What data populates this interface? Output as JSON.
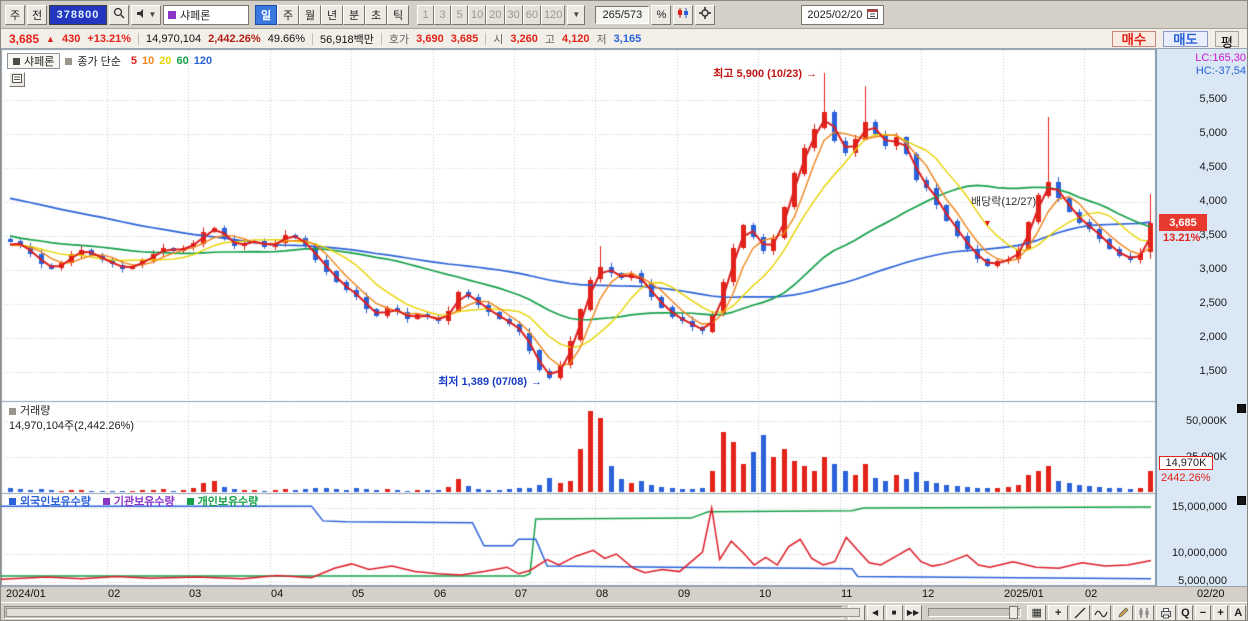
{
  "colors": {
    "up_candle": "#e2231a",
    "down_candle": "#2b62d9",
    "badge_bg": "#e8392e",
    "gutter_bg": "#dae7f5",
    "lc_color": "#d018d0",
    "hc_color": "#2b62d9"
  },
  "icons": {
    "up_arrow": "▲",
    "dropdown": "▼",
    "nav_buttons": [
      "▶",
      "◀",
      "■",
      "▶▶"
    ],
    "grid": "▦",
    "crosshair": "+"
  },
  "toolbar": {
    "btn_week": "주",
    "btn_prev": "전",
    "stock_code": "378800",
    "stock_name": "샤페론",
    "period_tabs": [
      "일",
      "주",
      "월",
      "년",
      "분",
      "초",
      "틱"
    ],
    "active_period": "일",
    "interval_buttons": [
      "1",
      "3",
      "5",
      "10",
      "20",
      "30",
      "60",
      "120"
    ],
    "counter": "265/573",
    "percent_icon_label": "%",
    "date": "2025/02/20"
  },
  "quote_bar": {
    "price": "3,685",
    "up_arrow": "▲",
    "change": "430",
    "change_pct": "+13.21%",
    "volume": "14,970,104",
    "volume_ratio": "2,442.26%",
    "turnover": "49.66%",
    "amount": "56,918백만",
    "hoga_label": "호가",
    "ask": "3,690",
    "bid": "3,685",
    "open_label": "시",
    "open": "3,260",
    "high_label": "고",
    "high": "4,120",
    "low_label": "저",
    "low": "3,165",
    "buy": "매수",
    "sell": "매도",
    "avg": "평"
  },
  "chart": {
    "title": "샤페론",
    "legend_label": "종가 단순",
    "ma_items": [
      {
        "label": "5",
        "color": "#dc1e1e"
      },
      {
        "label": "10",
        "color": "#f08418"
      },
      {
        "label": "20",
        "color": "#e8d400"
      },
      {
        "label": "60",
        "color": "#16a04a"
      },
      {
        "label": "120",
        "color": "#2b62d9"
      }
    ],
    "lc": "LC:165,30",
    "hc": "HC:-37,54",
    "price_ticks": [
      "5,500",
      "5,000",
      "4,500",
      "4,000",
      "3,500",
      "3,000",
      "2,500",
      "2,000",
      "1,500"
    ],
    "badge_price": "3,685",
    "badge_pct": "13.21%",
    "annotations": {
      "high": {
        "text": "최고 5,900 (10/23)",
        "arrow": "→"
      },
      "low": {
        "text": "최저 1,389 (07/08)",
        "arrow": "→"
      },
      "exdiv": {
        "text": "배당락(12/27)",
        "marker": "▼"
      }
    }
  },
  "volume_panel": {
    "label": "거래량",
    "detail": "14,970,104주(2,442.26%)",
    "ticks": [
      "50,000K",
      "25,000K"
    ],
    "badge": "14,970K",
    "badge_pct": "2442.26%"
  },
  "ownership_panel": {
    "legends": [
      {
        "label": "외국인보유수량",
        "color": "#2b62d9"
      },
      {
        "label": "기관보유수량",
        "color": "#8a34c8"
      },
      {
        "label": "개인보유수량",
        "color": "#16a04a"
      }
    ],
    "ticks": [
      "15,000,000",
      "10,000,000",
      "5,000,000"
    ]
  },
  "x_axis": {
    "labels": [
      "2024/01",
      "02",
      "03",
      "04",
      "05",
      "06",
      "07",
      "08",
      "09",
      "10",
      "11",
      "12",
      "2025/01",
      "02"
    ],
    "right_label": "02/20"
  },
  "bottom_bar": {
    "zoom_label": "Q",
    "minus": "−",
    "plus": "+",
    "auto": "A"
  },
  "chart_data": {
    "type": "candlestick",
    "code": "378800",
    "name": "샤페론",
    "timeframe": "daily",
    "x_start": "2024/01",
    "x_end": "2025/02/20",
    "y_ticks": [
      1500,
      2000,
      2500,
      3000,
      3500,
      4000,
      4500,
      5000,
      5500
    ],
    "volume_ticks_k": [
      25000,
      50000
    ],
    "ownership_ticks_m": [
      5,
      10,
      15
    ],
    "month_start_indices": [
      0,
      10,
      18,
      26,
      34,
      42,
      50,
      58,
      66,
      74,
      82,
      90,
      98,
      106
    ],
    "closes": [
      3420,
      3350,
      3230,
      3080,
      3020,
      3100,
      3230,
      3300,
      3220,
      3140,
      3080,
      3020,
      3060,
      3140,
      3240,
      3320,
      3280,
      3330,
      3390,
      3560,
      3620,
      3460,
      3350,
      3400,
      3430,
      3340,
      3400,
      3520,
      3470,
      3350,
      3150,
      2980,
      2820,
      2700,
      2600,
      2420,
      2320,
      2440,
      2380,
      2280,
      2350,
      2300,
      2250,
      2400,
      2680,
      2600,
      2480,
      2380,
      2280,
      2200,
      2080,
      1820,
      1520,
      1420,
      1610,
      1960,
      2420,
      2860,
      3040,
      2950,
      2870,
      2950,
      2800,
      2610,
      2450,
      2310,
      2250,
      2160,
      2100,
      2360,
      2820,
      3320,
      3660,
      3480,
      3280,
      3460,
      3920,
      4420,
      4800,
      5080,
      5320,
      4900,
      4720,
      4920,
      5180,
      5000,
      4820,
      4950,
      4700,
      4320,
      4200,
      3950,
      3720,
      3500,
      3310,
      3160,
      3060,
      3130,
      3160,
      3310,
      3700,
      4100,
      4300,
      4060,
      3860,
      3700,
      3600,
      3460,
      3310,
      3210,
      3150,
      3255,
      3685
    ],
    "volumes_k": [
      2500,
      1800,
      1500,
      2200,
      1200,
      900,
      1400,
      1100,
      800,
      1000,
      900,
      700,
      800,
      1200,
      1500,
      1800,
      1000,
      1200,
      2500,
      6500,
      8000,
      3500,
      1800,
      1500,
      1200,
      1000,
      1500,
      2000,
      1200,
      1800,
      2500,
      3000,
      2200,
      1500,
      2800,
      2000,
      1500,
      1800,
      1200,
      1000,
      1500,
      1200,
      1500,
      3500,
      9000,
      4000,
      2000,
      1500,
      1200,
      1800,
      2500,
      3000,
      5000,
      10000,
      6000,
      8000,
      30000,
      57000,
      52000,
      18000,
      9000,
      6000,
      8000,
      5000,
      3500,
      2500,
      2000,
      1800,
      2500,
      15000,
      42000,
      35000,
      20000,
      28000,
      40000,
      25000,
      30000,
      22000,
      18000,
      15000,
      25000,
      20000,
      15000,
      12000,
      20000,
      10000,
      8000,
      12000,
      9000,
      14000,
      8000,
      6000,
      5000,
      4000,
      3500,
      3000,
      2500,
      3000,
      3500,
      5000,
      12000,
      15000,
      18000,
      8000,
      6000,
      5000,
      4000,
      3500,
      3000,
      2500,
      2000,
      2500,
      14970
    ],
    "wick_highs": {
      "58": 3350,
      "80": 5900,
      "84": 5700,
      "102": 5250
    },
    "wick_lows": {
      "53": 1389,
      "68": 2050
    },
    "last_candle": {
      "open": 3260,
      "high": 4120,
      "low": 3165,
      "close": 3685
    },
    "extremes": {
      "high": {
        "value": 5900,
        "date": "10/23",
        "index": 80
      },
      "low": {
        "value": 1389,
        "date": "07/08",
        "index": 53
      },
      "exdiv": {
        "index": 96,
        "label_price": 4050,
        "marker_price": 3620
      }
    },
    "ma_periods": [
      5,
      10,
      20,
      60,
      120
    ],
    "prior_close_anchors": [
      [
        0,
        5000
      ],
      [
        0.55,
        5000
      ],
      [
        0.6,
        4800
      ],
      [
        0.8,
        4400
      ],
      [
        0.82,
        3600
      ],
      [
        1,
        3330
      ]
    ],
    "ownership_m": {
      "foreign": [
        [
          0,
          15.2
        ],
        [
          27,
          15.2
        ],
        [
          28,
          13.6
        ],
        [
          30,
          13.5
        ],
        [
          41,
          13.4
        ],
        [
          42,
          10.9
        ],
        [
          44.5,
          10.9
        ],
        [
          45,
          11.6
        ],
        [
          46.5,
          11.6
        ],
        [
          47.5,
          7.8
        ],
        [
          58,
          7.6
        ],
        [
          70,
          7.4
        ],
        [
          74,
          7.3
        ],
        [
          74.5,
          5.9
        ],
        [
          100,
          5.5
        ]
      ],
      "individual": [
        [
          0,
          6.0
        ],
        [
          45.5,
          6.0
        ],
        [
          46,
          6.4
        ],
        [
          46.5,
          13.8
        ],
        [
          60,
          13.9
        ],
        [
          61.5,
          14.6
        ],
        [
          74,
          14.7
        ],
        [
          75,
          15.0
        ],
        [
          100,
          15.1
        ]
      ],
      "institution": [
        [
          0,
          5.4
        ],
        [
          4,
          5.8
        ],
        [
          7,
          5.5
        ],
        [
          10,
          5.9
        ],
        [
          13,
          5.6
        ],
        [
          17,
          5.8
        ],
        [
          21,
          5.5
        ],
        [
          24,
          6.1
        ],
        [
          27,
          5.7
        ],
        [
          29,
          7.4
        ],
        [
          30.5,
          8.2
        ],
        [
          32,
          7.2
        ],
        [
          34,
          7.8
        ],
        [
          36,
          6.8
        ],
        [
          38,
          6.4
        ],
        [
          40,
          6.2
        ],
        [
          42,
          6.8
        ],
        [
          44,
          7.6
        ],
        [
          45,
          6.4
        ],
        [
          46,
          7.0
        ],
        [
          47.5,
          9.0
        ],
        [
          48.5,
          8.0
        ],
        [
          50,
          9.6
        ],
        [
          51.5,
          10.4
        ],
        [
          52.5,
          9.2
        ],
        [
          53.5,
          10.0
        ],
        [
          55,
          7.4
        ],
        [
          56,
          6.6
        ],
        [
          57.5,
          7.2
        ],
        [
          59,
          6.8
        ],
        [
          61,
          10.2
        ],
        [
          61.8,
          15.0
        ],
        [
          62.5,
          9.0
        ],
        [
          63.5,
          11.4
        ],
        [
          64.5,
          10.2
        ],
        [
          65.5,
          8.0
        ],
        [
          66.5,
          9.4
        ],
        [
          67.5,
          8.0
        ],
        [
          68.5,
          10.8
        ],
        [
          69.5,
          11.6
        ],
        [
          70.5,
          9.2
        ],
        [
          71.5,
          8.0
        ],
        [
          72.5,
          8.6
        ],
        [
          73.5,
          11.8
        ],
        [
          74.5,
          10.4
        ],
        [
          75.5,
          8.4
        ],
        [
          76.5,
          8.0
        ],
        [
          78,
          9.8
        ],
        [
          79,
          10.6
        ],
        [
          80,
          8.6
        ],
        [
          81,
          7.8
        ],
        [
          82,
          8.2
        ],
        [
          84,
          9.8
        ],
        [
          85,
          8.0
        ],
        [
          86,
          7.6
        ],
        [
          88,
          8.6
        ],
        [
          90,
          7.6
        ],
        [
          92,
          7.4
        ],
        [
          94,
          8.4
        ],
        [
          96,
          7.8
        ],
        [
          98,
          8.0
        ],
        [
          100,
          8.8
        ]
      ]
    }
  }
}
